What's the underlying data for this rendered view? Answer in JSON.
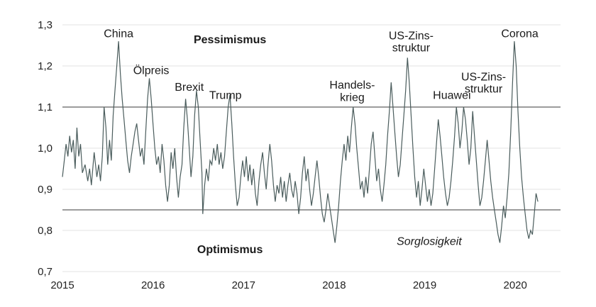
{
  "chart_data": {
    "type": "line",
    "x_ticks": [
      "2015",
      "2016",
      "2017",
      "2018",
      "2019",
      "2020"
    ],
    "y_ticks": [
      "0,7",
      "0,8",
      "0,9",
      "1,0",
      "1,1",
      "1,2",
      "1,3"
    ],
    "ylim": [
      0.7,
      1.3
    ],
    "xlim": [
      2015.0,
      2020.5
    ],
    "grid": "horizontal",
    "reference_lines": [
      1.1,
      0.85
    ],
    "line_color": "#4a5c5c",
    "series": [
      {
        "values": [
          [
            2015.0,
            0.93
          ],
          [
            2015.02,
            0.97
          ],
          [
            2015.04,
            1.01
          ],
          [
            2015.06,
            0.98
          ],
          [
            2015.08,
            1.03
          ],
          [
            2015.1,
            0.99
          ],
          [
            2015.12,
            1.02
          ],
          [
            2015.14,
            0.95
          ],
          [
            2015.16,
            1.05
          ],
          [
            2015.18,
            0.98
          ],
          [
            2015.2,
            1.01
          ],
          [
            2015.22,
            0.94
          ],
          [
            2015.25,
            0.96
          ],
          [
            2015.28,
            0.92
          ],
          [
            2015.3,
            0.95
          ],
          [
            2015.32,
            0.91
          ],
          [
            2015.35,
            0.99
          ],
          [
            2015.38,
            0.93
          ],
          [
            2015.4,
            0.96
          ],
          [
            2015.42,
            0.92
          ],
          [
            2015.44,
            0.98
          ],
          [
            2015.46,
            1.1
          ],
          [
            2015.48,
            1.05
          ],
          [
            2015.5,
            0.96
          ],
          [
            2015.52,
            1.02
          ],
          [
            2015.54,
            0.97
          ],
          [
            2015.56,
            1.08
          ],
          [
            2015.58,
            1.14
          ],
          [
            2015.6,
            1.2
          ],
          [
            2015.62,
            1.26
          ],
          [
            2015.64,
            1.18
          ],
          [
            2015.66,
            1.12
          ],
          [
            2015.68,
            1.07
          ],
          [
            2015.7,
            1.02
          ],
          [
            2015.72,
            0.97
          ],
          [
            2015.74,
            0.94
          ],
          [
            2015.76,
            0.98
          ],
          [
            2015.78,
            1.01
          ],
          [
            2015.8,
            1.04
          ],
          [
            2015.82,
            1.06
          ],
          [
            2015.84,
            1.02
          ],
          [
            2015.86,
            0.98
          ],
          [
            2015.88,
            1.0
          ],
          [
            2015.9,
            0.96
          ],
          [
            2015.92,
            1.04
          ],
          [
            2015.94,
            1.12
          ],
          [
            2015.96,
            1.17
          ],
          [
            2015.98,
            1.12
          ],
          [
            2016.0,
            1.06
          ],
          [
            2016.02,
            1.0
          ],
          [
            2016.04,
            0.96
          ],
          [
            2016.06,
            0.98
          ],
          [
            2016.08,
            0.94
          ],
          [
            2016.1,
            1.01
          ],
          [
            2016.12,
            0.97
          ],
          [
            2016.14,
            0.91
          ],
          [
            2016.16,
            0.87
          ],
          [
            2016.18,
            0.91
          ],
          [
            2016.2,
            0.99
          ],
          [
            2016.22,
            0.95
          ],
          [
            2016.24,
            1.0
          ],
          [
            2016.26,
            0.93
          ],
          [
            2016.28,
            0.88
          ],
          [
            2016.3,
            0.93
          ],
          [
            2016.32,
            0.96
          ],
          [
            2016.34,
            1.05
          ],
          [
            2016.36,
            1.12
          ],
          [
            2016.38,
            1.07
          ],
          [
            2016.4,
            1.0
          ],
          [
            2016.42,
            0.93
          ],
          [
            2016.44,
            0.98
          ],
          [
            2016.46,
            1.08
          ],
          [
            2016.48,
            1.14
          ],
          [
            2016.5,
            1.1
          ],
          [
            2016.52,
            1.02
          ],
          [
            2016.54,
            0.94
          ],
          [
            2016.55,
            0.84
          ],
          [
            2016.57,
            0.91
          ],
          [
            2016.59,
            0.95
          ],
          [
            2016.61,
            0.92
          ],
          [
            2016.63,
            0.97
          ],
          [
            2016.65,
            0.96
          ],
          [
            2016.67,
            1.0
          ],
          [
            2016.69,
            0.97
          ],
          [
            2016.71,
            1.01
          ],
          [
            2016.73,
            0.96
          ],
          [
            2016.75,
            0.99
          ],
          [
            2016.77,
            0.95
          ],
          [
            2016.79,
            0.98
          ],
          [
            2016.81,
            1.04
          ],
          [
            2016.83,
            1.1
          ],
          [
            2016.85,
            1.13
          ],
          [
            2016.87,
            1.06
          ],
          [
            2016.89,
            0.98
          ],
          [
            2016.91,
            0.91
          ],
          [
            2016.93,
            0.86
          ],
          [
            2016.95,
            0.88
          ],
          [
            2016.97,
            0.93
          ],
          [
            2016.99,
            0.97
          ],
          [
            2017.01,
            0.93
          ],
          [
            2017.03,
            0.98
          ],
          [
            2017.05,
            0.92
          ],
          [
            2017.07,
            0.96
          ],
          [
            2017.09,
            0.91
          ],
          [
            2017.11,
            0.95
          ],
          [
            2017.13,
            0.89
          ],
          [
            2017.15,
            0.86
          ],
          [
            2017.17,
            0.92
          ],
          [
            2017.19,
            0.96
          ],
          [
            2017.21,
            0.99
          ],
          [
            2017.23,
            0.94
          ],
          [
            2017.25,
            0.9
          ],
          [
            2017.27,
            0.96
          ],
          [
            2017.29,
            1.01
          ],
          [
            2017.31,
            0.97
          ],
          [
            2017.33,
            0.91
          ],
          [
            2017.35,
            0.87
          ],
          [
            2017.37,
            0.91
          ],
          [
            2017.39,
            0.89
          ],
          [
            2017.41,
            0.93
          ],
          [
            2017.43,
            0.88
          ],
          [
            2017.45,
            0.92
          ],
          [
            2017.47,
            0.87
          ],
          [
            2017.49,
            0.91
          ],
          [
            2017.51,
            0.94
          ],
          [
            2017.53,
            0.9
          ],
          [
            2017.55,
            0.88
          ],
          [
            2017.57,
            0.92
          ],
          [
            2017.59,
            0.89
          ],
          [
            2017.61,
            0.84
          ],
          [
            2017.63,
            0.88
          ],
          [
            2017.65,
            0.94
          ],
          [
            2017.67,
            0.98
          ],
          [
            2017.69,
            0.92
          ],
          [
            2017.71,
            0.95
          ],
          [
            2017.73,
            0.9
          ],
          [
            2017.75,
            0.86
          ],
          [
            2017.77,
            0.89
          ],
          [
            2017.79,
            0.93
          ],
          [
            2017.81,
            0.97
          ],
          [
            2017.83,
            0.93
          ],
          [
            2017.85,
            0.88
          ],
          [
            2017.87,
            0.84
          ],
          [
            2017.89,
            0.82
          ],
          [
            2017.91,
            0.85
          ],
          [
            2017.93,
            0.89
          ],
          [
            2017.95,
            0.86
          ],
          [
            2017.97,
            0.83
          ],
          [
            2017.99,
            0.8
          ],
          [
            2018.01,
            0.77
          ],
          [
            2018.03,
            0.81
          ],
          [
            2018.05,
            0.86
          ],
          [
            2018.07,
            0.92
          ],
          [
            2018.09,
            0.97
          ],
          [
            2018.11,
            1.01
          ],
          [
            2018.13,
            0.97
          ],
          [
            2018.15,
            1.03
          ],
          [
            2018.17,
            0.99
          ],
          [
            2018.19,
            1.05
          ],
          [
            2018.21,
            1.1
          ],
          [
            2018.23,
            1.06
          ],
          [
            2018.25,
            1.0
          ],
          [
            2018.27,
            0.95
          ],
          [
            2018.29,
            0.9
          ],
          [
            2018.31,
            0.92
          ],
          [
            2018.33,
            0.88
          ],
          [
            2018.35,
            0.93
          ],
          [
            2018.37,
            0.89
          ],
          [
            2018.39,
            0.95
          ],
          [
            2018.41,
            1.01
          ],
          [
            2018.43,
            1.04
          ],
          [
            2018.45,
            0.98
          ],
          [
            2018.47,
            0.92
          ],
          [
            2018.49,
            0.95
          ],
          [
            2018.51,
            0.9
          ],
          [
            2018.53,
            0.87
          ],
          [
            2018.55,
            0.91
          ],
          [
            2018.57,
            0.96
          ],
          [
            2018.59,
            1.03
          ],
          [
            2018.61,
            1.09
          ],
          [
            2018.63,
            1.16
          ],
          [
            2018.65,
            1.1
          ],
          [
            2018.67,
            1.04
          ],
          [
            2018.69,
            0.98
          ],
          [
            2018.71,
            0.93
          ],
          [
            2018.73,
            0.96
          ],
          [
            2018.75,
            1.02
          ],
          [
            2018.77,
            1.08
          ],
          [
            2018.79,
            1.14
          ],
          [
            2018.81,
            1.22
          ],
          [
            2018.83,
            1.16
          ],
          [
            2018.85,
            1.08
          ],
          [
            2018.87,
            1.0
          ],
          [
            2018.89,
            0.93
          ],
          [
            2018.91,
            0.88
          ],
          [
            2018.93,
            0.92
          ],
          [
            2018.95,
            0.86
          ],
          [
            2018.97,
            0.9
          ],
          [
            2018.99,
            0.95
          ],
          [
            2019.01,
            0.91
          ],
          [
            2019.03,
            0.87
          ],
          [
            2019.05,
            0.9
          ],
          [
            2019.07,
            0.86
          ],
          [
            2019.09,
            0.89
          ],
          [
            2019.11,
            0.95
          ],
          [
            2019.13,
            1.01
          ],
          [
            2019.15,
            1.07
          ],
          [
            2019.17,
            1.03
          ],
          [
            2019.19,
            0.98
          ],
          [
            2019.21,
            0.93
          ],
          [
            2019.23,
            0.89
          ],
          [
            2019.25,
            0.86
          ],
          [
            2019.27,
            0.88
          ],
          [
            2019.29,
            0.92
          ],
          [
            2019.31,
            0.97
          ],
          [
            2019.33,
            1.03
          ],
          [
            2019.35,
            1.1
          ],
          [
            2019.37,
            1.06
          ],
          [
            2019.39,
            1.0
          ],
          [
            2019.41,
            1.04
          ],
          [
            2019.43,
            1.1
          ],
          [
            2019.45,
            1.07
          ],
          [
            2019.47,
            1.02
          ],
          [
            2019.49,
            0.96
          ],
          [
            2019.51,
            1.0
          ],
          [
            2019.53,
            1.09
          ],
          [
            2019.55,
            1.03
          ],
          [
            2019.57,
            0.97
          ],
          [
            2019.59,
            0.91
          ],
          [
            2019.61,
            0.86
          ],
          [
            2019.63,
            0.88
          ],
          [
            2019.65,
            0.92
          ],
          [
            2019.67,
            0.97
          ],
          [
            2019.69,
            1.02
          ],
          [
            2019.71,
            0.97
          ],
          [
            2019.73,
            0.92
          ],
          [
            2019.75,
            0.88
          ],
          [
            2019.77,
            0.85
          ],
          [
            2019.79,
            0.82
          ],
          [
            2019.81,
            0.79
          ],
          [
            2019.83,
            0.77
          ],
          [
            2019.85,
            0.81
          ],
          [
            2019.87,
            0.86
          ],
          [
            2019.89,
            0.83
          ],
          [
            2019.91,
            0.88
          ],
          [
            2019.93,
            0.94
          ],
          [
            2019.95,
            1.04
          ],
          [
            2019.97,
            1.16
          ],
          [
            2019.99,
            1.26
          ],
          [
            2020.01,
            1.2
          ],
          [
            2020.03,
            1.09
          ],
          [
            2020.05,
            1.0
          ],
          [
            2020.07,
            0.93
          ],
          [
            2020.09,
            0.88
          ],
          [
            2020.11,
            0.84
          ],
          [
            2020.13,
            0.8
          ],
          [
            2020.15,
            0.78
          ],
          [
            2020.17,
            0.8
          ],
          [
            2020.19,
            0.79
          ],
          [
            2020.21,
            0.84
          ],
          [
            2020.23,
            0.89
          ],
          [
            2020.25,
            0.87
          ]
        ]
      }
    ],
    "annotations": [
      {
        "text": "China",
        "x": 2015.62,
        "y": 1.27
      },
      {
        "text": "Ölpreis",
        "x": 2015.98,
        "y": 1.18
      },
      {
        "text": "Brexit",
        "x": 2016.4,
        "y": 1.14
      },
      {
        "text": "Trump",
        "x": 2016.8,
        "y": 1.12
      },
      {
        "text": "Handels-",
        "x": 2018.2,
        "y": 1.145
      },
      {
        "text": "krieg",
        "x": 2018.2,
        "y": 1.115
      },
      {
        "text": "US-Zins-",
        "x": 2018.85,
        "y": 1.265
      },
      {
        "text": "struktur",
        "x": 2018.85,
        "y": 1.235
      },
      {
        "text": "Huawei",
        "x": 2019.3,
        "y": 1.12
      },
      {
        "text": "US-Zins-",
        "x": 2019.65,
        "y": 1.165
      },
      {
        "text": "struktur",
        "x": 2019.65,
        "y": 1.135
      },
      {
        "text": "Corona",
        "x": 2020.05,
        "y": 1.27
      }
    ],
    "region_labels": [
      {
        "text": "Pessimismus",
        "x": 2016.85,
        "y": 1.255,
        "style": "bold"
      },
      {
        "text": "Optimismus",
        "x": 2016.85,
        "y": 0.745,
        "style": "bold"
      },
      {
        "text": "Sorglosigkeit",
        "x": 2019.05,
        "y": 0.765,
        "style": "italic"
      }
    ]
  }
}
